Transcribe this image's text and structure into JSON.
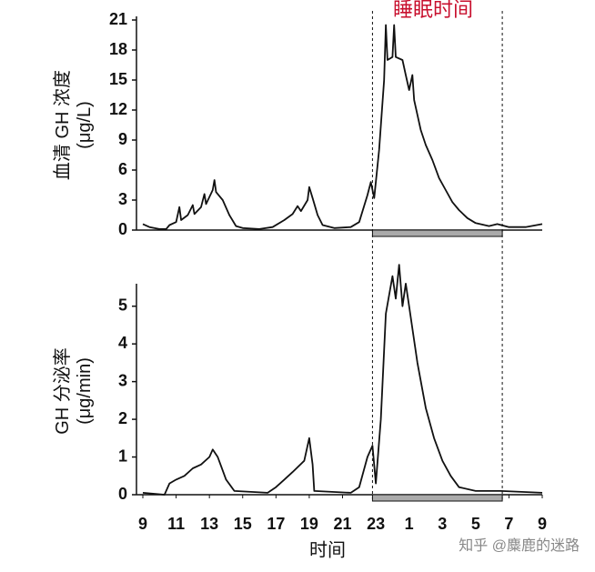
{
  "chart_data": [
    {
      "type": "line",
      "ylabel": "血清 GH 浓度",
      "yunit": "(μg/L)",
      "annotation": "睡眠时间",
      "annotation_color": "#c8102e",
      "sleep_period": [
        22.8,
        30.6
      ],
      "x": [
        9,
        9.4,
        10,
        10.4,
        10.6,
        11,
        11.2,
        11.3,
        11.7,
        12,
        12.1,
        12.5,
        12.7,
        12.8,
        13.2,
        13.3,
        13.4,
        13.8,
        14.2,
        14.6,
        15,
        16,
        16.8,
        17.5,
        18,
        18.3,
        18.5,
        18.9,
        19,
        19.2,
        19.5,
        19.8,
        20.5,
        21.5,
        22,
        22.5,
        22.7,
        22.9,
        23.2,
        23.5,
        23.6,
        23.7,
        24,
        24.1,
        24.2,
        24.6,
        24.8,
        25,
        25.2,
        25.3,
        25.7,
        26,
        26.4,
        26.8,
        27.2,
        27.6,
        28,
        28.5,
        29,
        29.8,
        30.3,
        31,
        32,
        33
      ],
      "series": [
        {
          "color": "#111111",
          "values": [
            0.6,
            0.3,
            0.1,
            0.1,
            0.5,
            0.8,
            2.3,
            1.0,
            1.5,
            2.5,
            1.6,
            2.3,
            3.6,
            2.6,
            4.0,
            5.0,
            3.8,
            3.0,
            1.5,
            0.4,
            0.2,
            0.1,
            0.3,
            1.0,
            1.6,
            2.4,
            1.9,
            3.0,
            4.3,
            3.2,
            1.5,
            0.5,
            0.2,
            0.3,
            0.8,
            3.5,
            4.8,
            3.2,
            8,
            15,
            20.5,
            17,
            17.3,
            20.5,
            17.3,
            17,
            15.5,
            14,
            15.5,
            13,
            10,
            8.5,
            7,
            5.2,
            4,
            2.8,
            2,
            1.2,
            0.7,
            0.4,
            0.6,
            0.3,
            0.3,
            0.6
          ]
        }
      ],
      "xlim": [
        9,
        33
      ],
      "ylim": [
        0,
        21
      ],
      "yticks": [
        0,
        3,
        6,
        9,
        12,
        15,
        18,
        21
      ]
    },
    {
      "type": "line",
      "ylabel": "GH 分泌率",
      "yunit": "(μg/min)",
      "xlabel": "时间",
      "watermark": "知乎 @麋鹿的迷路",
      "x": [
        9,
        10.3,
        10.6,
        11,
        11.5,
        12,
        12.5,
        13,
        13.2,
        13.5,
        14,
        14.5,
        16.5,
        17,
        17.5,
        18,
        18.7,
        19,
        19.2,
        19.3,
        21.5,
        22,
        22.5,
        22.8,
        23,
        23.3,
        23.6,
        24,
        24.2,
        24.4,
        24.6,
        24.8,
        25,
        25.5,
        26,
        26.5,
        27,
        27.5,
        28,
        29,
        30.5,
        33
      ],
      "series": [
        {
          "color": "#111111",
          "values": [
            0.05,
            0,
            0.3,
            0.4,
            0.5,
            0.7,
            0.8,
            1.0,
            1.2,
            1.0,
            0.4,
            0.1,
            0.05,
            0.2,
            0.4,
            0.6,
            0.9,
            1.5,
            0.8,
            0.1,
            0.05,
            0.2,
            1.0,
            1.3,
            0.3,
            2,
            4.8,
            5.8,
            5.2,
            6.1,
            5.0,
            5.6,
            5.0,
            3.5,
            2.3,
            1.5,
            0.9,
            0.5,
            0.2,
            0.1,
            0.1,
            0.05
          ]
        }
      ],
      "xlim": [
        9,
        33
      ],
      "ylim": [
        0,
        5.5
      ],
      "yticks": [
        0,
        1,
        2,
        3,
        4,
        5
      ],
      "xticks": [
        9,
        11,
        13,
        15,
        17,
        19,
        21,
        23,
        {
          "value": 25,
          "label": "1"
        },
        {
          "value": 27,
          "label": "3"
        },
        {
          "value": 29,
          "label": "5"
        },
        {
          "value": 31,
          "label": "7"
        },
        {
          "value": 33,
          "label": "9"
        }
      ]
    }
  ]
}
